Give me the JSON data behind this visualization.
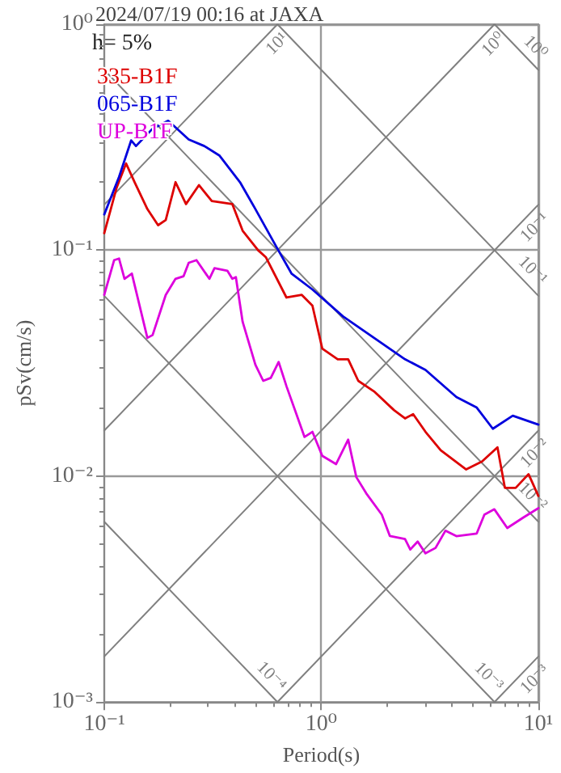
{
  "chart_data": {
    "type": "line",
    "title": "2024/07/19 00:16 at JAXA",
    "xlabel": "Period(s)",
    "ylabel": "pSv(cm/s)",
    "annotations": [
      "h= 5%"
    ],
    "log": "xy",
    "grid": true,
    "legend": "top left",
    "marker": "none",
    "line_style": "solid",
    "xlim": [
      0.1,
      10
    ],
    "ylim": [
      0.001,
      1
    ],
    "xticks": [
      {
        "value": 0.1,
        "label": "10⁻¹"
      },
      {
        "value": 1,
        "label": "10⁰"
      },
      {
        "value": 10,
        "label": "10¹"
      }
    ],
    "yticks": [
      {
        "value": 0.001,
        "label": "10⁻³"
      },
      {
        "value": 0.01,
        "label": "10⁻²"
      },
      {
        "value": 0.1,
        "label": "10⁻¹"
      },
      {
        "value": 1,
        "label": "10⁰"
      }
    ],
    "series": [
      {
        "name": "335-B1F",
        "color": "#dd0000",
        "x": [
          0.1,
          0.114,
          0.126,
          0.138,
          0.158,
          0.177,
          0.192,
          0.213,
          0.238,
          0.273,
          0.313,
          0.389,
          0.434,
          0.511,
          0.556,
          0.691,
          0.813,
          0.91,
          1.01,
          1.19,
          1.33,
          1.48,
          1.75,
          2.16,
          2.43,
          2.65,
          3.02,
          3.55,
          4.65,
          5.5,
          6.48,
          7.01,
          7.86,
          9.01,
          10
        ],
        "values": [
          0.119,
          0.189,
          0.242,
          0.2,
          0.152,
          0.129,
          0.136,
          0.2,
          0.16,
          0.194,
          0.165,
          0.16,
          0.122,
          0.1,
          0.0929,
          0.0617,
          0.0634,
          0.0568,
          0.0367,
          0.0329,
          0.0329,
          0.0264,
          0.0237,
          0.0196,
          0.018,
          0.0188,
          0.0157,
          0.013,
          0.0107,
          0.0116,
          0.0134,
          0.00887,
          0.00887,
          0.0102,
          0.00817
        ]
      },
      {
        "name": "065-B1F",
        "color": "#0000dd",
        "x": [
          0.1,
          0.117,
          0.133,
          0.14,
          0.167,
          0.197,
          0.245,
          0.289,
          0.34,
          0.422,
          0.497,
          0.619,
          0.729,
          0.91,
          1.26,
          1.75,
          2.43,
          3.02,
          4.19,
          5.2,
          6.17,
          7.62,
          10
        ],
        "values": [
          0.144,
          0.211,
          0.306,
          0.289,
          0.345,
          0.374,
          0.309,
          0.289,
          0.262,
          0.2,
          0.152,
          0.104,
          0.0788,
          0.067,
          0.0509,
          0.0409,
          0.0329,
          0.0295,
          0.0224,
          0.0201,
          0.0162,
          0.0185,
          0.0169
        ]
      },
      {
        "name": "UP-B1F",
        "color": "#dd00dd",
        "x": [
          0.1,
          0.111,
          0.117,
          0.124,
          0.134,
          0.158,
          0.167,
          0.192,
          0.213,
          0.232,
          0.245,
          0.266,
          0.305,
          0.322,
          0.369,
          0.389,
          0.404,
          0.434,
          0.497,
          0.54,
          0.585,
          0.636,
          0.691,
          0.837,
          0.91,
          1.01,
          1.17,
          1.33,
          1.45,
          1.61,
          1.9,
          2.07,
          2.43,
          2.57,
          2.78,
          3.02,
          3.36,
          3.73,
          4.19,
          5.2,
          5.64,
          6.27,
          7.19,
          8.53,
          10
        ],
        "values": [
          0.0634,
          0.0903,
          0.0918,
          0.0747,
          0.0788,
          0.0409,
          0.0421,
          0.0634,
          0.0747,
          0.0767,
          0.0879,
          0.0903,
          0.0747,
          0.0832,
          0.0811,
          0.0747,
          0.076,
          0.0482,
          0.0311,
          0.0264,
          0.0272,
          0.032,
          0.025,
          0.0149,
          0.0157,
          0.0123,
          0.0113,
          0.0145,
          0.00989,
          0.00839,
          0.00675,
          0.00543,
          0.00527,
          0.00473,
          0.00513,
          0.00455,
          0.00481,
          0.00573,
          0.00542,
          0.00557,
          0.00675,
          0.00713,
          0.00589,
          0.00656,
          0.00721
        ]
      },
      {
        "name": "10¹",
        "color": "#808080",
        "type": "line",
        "x": [
          0.1,
          0.628
        ],
        "values": [
          0.159,
          1
        ]
      },
      {
        "name": "10⁰",
        "color": "#808080",
        "type": "line",
        "x": [
          0.1,
          6.28
        ],
        "values": [
          0.0159,
          1
        ]
      },
      {
        "name": "10⁻¹",
        "color": "#808080",
        "type": "line",
        "x": [
          0.1,
          10
        ],
        "values": [
          0.00159,
          0.159
        ]
      },
      {
        "name": "10⁻²",
        "color": "#808080",
        "type": "line",
        "x": [
          0.628,
          10
        ],
        "values": [
          0.001,
          0.0159
        ]
      },
      {
        "name": "10⁻³",
        "color": "#808080",
        "type": "line",
        "x": [
          6.28,
          10
        ],
        "values": [
          0.001,
          0.00159
        ]
      },
      {
        "name": "10⁰",
        "color": "#808080",
        "type": "line",
        "x": [
          6.28,
          10
        ],
        "values": [
          1,
          0.628
        ]
      },
      {
        "name": "10⁻¹",
        "color": "#808080",
        "type": "line",
        "x": [
          0.628,
          10
        ],
        "values": [
          1,
          0.0628
        ]
      },
      {
        "name": "10⁻²",
        "color": "#808080",
        "type": "line",
        "x": [
          0.1,
          10
        ],
        "values": [
          0.628,
          0.00628
        ]
      },
      {
        "name": "10⁻³",
        "color": "#808080",
        "type": "line",
        "x": [
          0.1,
          6.28
        ],
        "values": [
          0.0628,
          0.001
        ]
      },
      {
        "name": "10⁻⁴",
        "color": "#808080",
        "type": "line",
        "x": [
          0.1,
          0.628
        ],
        "values": [
          0.00628,
          0.001
        ]
      }
    ]
  }
}
